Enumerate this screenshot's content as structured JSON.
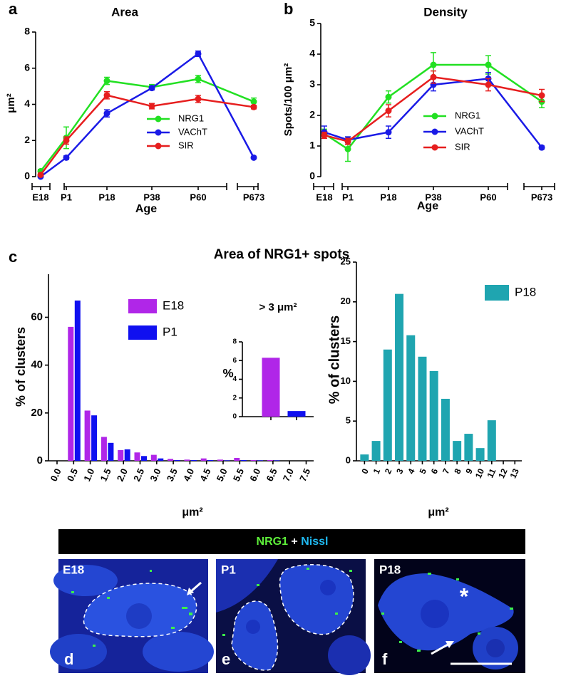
{
  "panel_labels": [
    "a",
    "b",
    "c"
  ],
  "section_title": "Area of NRG1+ spots",
  "micrograph_header": {
    "stain1": "NRG1",
    "joiner": "+",
    "stain2": "Nissl"
  },
  "micrographs": [
    {
      "stage": "E18",
      "panel": "d"
    },
    {
      "stage": "P1",
      "panel": "e"
    },
    {
      "stage": "P18",
      "panel": "f",
      "marker": "*"
    }
  ],
  "chart_data": [
    {
      "type": "line",
      "title": "Area",
      "xlabel": "Age",
      "ylabel": "μm²",
      "categories": [
        "E18",
        "P1",
        "P18",
        "P38",
        "P60",
        "P673"
      ],
      "ylim": [
        0,
        8
      ],
      "yticks": [
        0,
        2,
        4,
        6,
        8
      ],
      "legend": "center-right",
      "series": [
        {
          "name": "NRG1",
          "color": "#22e022",
          "values": [
            0.3,
            2.15,
            5.3,
            4.95,
            5.4,
            4.15
          ],
          "errors": [
            0.1,
            0.6,
            0.2,
            0.15,
            0.2,
            0.2
          ]
        },
        {
          "name": "VAChT",
          "color": "#1a1ae6",
          "values": [
            0,
            1.05,
            3.5,
            4.9,
            6.8,
            1.05
          ],
          "errors": [
            0.05,
            0.1,
            0.2,
            0.1,
            0.15,
            0.05
          ]
        },
        {
          "name": "SIR",
          "color": "#e61e1e",
          "values": [
            0.1,
            2.0,
            4.5,
            3.9,
            4.3,
            3.85
          ],
          "errors": [
            0.05,
            0.2,
            0.2,
            0.15,
            0.2,
            0.1
          ]
        }
      ]
    },
    {
      "type": "line",
      "title": "Density",
      "xlabel": "Age",
      "ylabel": "Spots/100 μm²",
      "categories": [
        "E18",
        "P1",
        "P18",
        "P38",
        "P60",
        "P673"
      ],
      "ylim": [
        0,
        5
      ],
      "yticks": [
        0,
        1,
        2,
        3,
        4,
        5
      ],
      "legend": "center-right",
      "series": [
        {
          "name": "NRG1",
          "color": "#22e022",
          "values": [
            1.4,
            0.9,
            2.6,
            3.65,
            3.65,
            2.45
          ],
          "errors": [
            0.15,
            0.4,
            0.2,
            0.4,
            0.3,
            0.2
          ]
        },
        {
          "name": "VAChT",
          "color": "#1a1ae6",
          "values": [
            1.45,
            1.2,
            1.45,
            3.0,
            3.2,
            0.95
          ],
          "errors": [
            0.2,
            0.1,
            0.2,
            0.2,
            0.2,
            0.05
          ]
        },
        {
          "name": "SIR",
          "color": "#e61e1e",
          "values": [
            1.35,
            1.15,
            2.15,
            3.25,
            3.0,
            2.65
          ],
          "errors": [
            0.1,
            0.1,
            0.2,
            0.2,
            0.2,
            0.2
          ]
        }
      ]
    },
    {
      "type": "bar",
      "xlabel": "μm²",
      "ylabel": "% of clusters",
      "categories": [
        "0.0",
        "0.5",
        "1.0",
        "1.5",
        "2.0",
        "2.5",
        "3.0",
        "3.5",
        "4.0",
        "4.5",
        "5.0",
        "5.5",
        "6.0",
        "6.5",
        "7.0",
        "7.5"
      ],
      "ylim": [
        0,
        78
      ],
      "yticks": [
        0,
        20,
        40,
        60
      ],
      "series": [
        {
          "name": "E18",
          "color": "#b026e8",
          "values": [
            null,
            56,
            21,
            10,
            4.5,
            3.5,
            2.5,
            0.8,
            0.5,
            1.0,
            0.5,
            1.2,
            0.3,
            0.3,
            null,
            null
          ]
        },
        {
          "name": "P1",
          "color": "#1010f0",
          "values": [
            null,
            67,
            19,
            7.5,
            4.8,
            2,
            1,
            0.3,
            0.3,
            0.3,
            0.2,
            0.3,
            0.2,
            0.2,
            null,
            null
          ]
        }
      ]
    },
    {
      "type": "bar",
      "title": "> 3 μm²",
      "ylabel": "%",
      "ylim": [
        0,
        8
      ],
      "yticks": [
        0,
        2,
        4,
        6,
        8
      ],
      "values": [
        6.3,
        0.6
      ],
      "colors": [
        "#b026e8",
        "#1010f0"
      ]
    },
    {
      "type": "bar",
      "xlabel": "μm²",
      "ylabel": "% of clusters",
      "xlim": [
        -0.7,
        13.6
      ],
      "xticks": [
        0,
        1,
        2,
        3,
        4,
        5,
        6,
        7,
        8,
        9,
        10,
        11,
        12,
        13
      ],
      "ylim": [
        0,
        25
      ],
      "yticks": [
        0,
        5,
        10,
        15,
        20,
        25
      ],
      "x": [
        0,
        1,
        2,
        3,
        4,
        5,
        6,
        7,
        8,
        9,
        10,
        11
      ],
      "series": [
        {
          "name": "P18",
          "color": "#1fa5b0",
          "values": [
            0.8,
            2.5,
            14,
            21,
            15.8,
            13.1,
            11.3,
            7.8,
            2.5,
            3.4,
            1.6,
            5.1
          ]
        }
      ]
    }
  ]
}
